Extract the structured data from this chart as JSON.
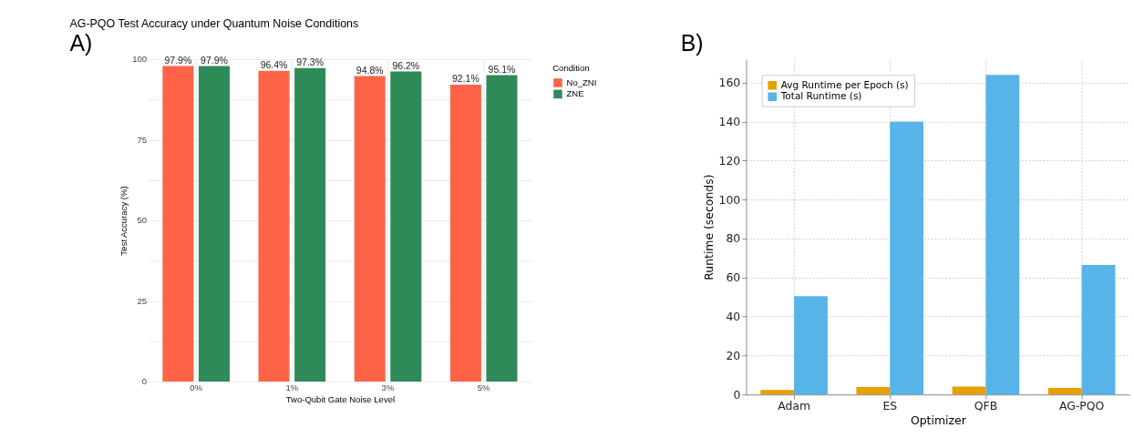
{
  "chart_data": [
    {
      "type": "bar",
      "title": "AG-PQO Test Accuracy under Quantum Noise Conditions",
      "xlabel": "Two-Qubit Gate Noise Level",
      "ylabel": "Test Accuracy (%)",
      "legend_title": "Condition",
      "categories": [
        "0%",
        "1%",
        "3%",
        "5%"
      ],
      "series": [
        {
          "name": "No_ZNI",
          "color": "#ff6347",
          "values": [
            97.9,
            96.4,
            94.8,
            92.1
          ],
          "value_labels": [
            "97.9%",
            "96.4%",
            "94.8%",
            "92.1%"
          ]
        },
        {
          "name": "ZNE",
          "color": "#2e8b57",
          "values": [
            97.9,
            97.3,
            96.2,
            95.1
          ],
          "value_labels": [
            "97.9%",
            "97.3%",
            "96.2%",
            "95.1%"
          ]
        }
      ],
      "ylim": [
        0,
        100
      ],
      "yticks": [
        0,
        {
          "value": 12.5,
          "label": null
        },
        25,
        {
          "value": 37.5,
          "label": null
        },
        50,
        {
          "value": 62.5,
          "label": null
        },
        75,
        {
          "value": 87.5,
          "label": null
        },
        100
      ],
      "grid": true,
      "legend": "right",
      "annotations": [
        "A)"
      ]
    },
    {
      "type": "bar",
      "xlabel": "Optimizer",
      "ylabel": "Runtime (seconds)",
      "categories": [
        "Adam",
        "ES",
        "QFB",
        "AG-PQO"
      ],
      "series": [
        {
          "name": "Avg Runtime per Epoch (s)",
          "color": "#e69f00",
          "values": [
            2.3,
            3.8,
            4.1,
            3.4
          ]
        },
        {
          "name": "Total Runtime (s)",
          "color": "#56b4e9",
          "values": [
            50.5,
            140,
            164,
            66.5
          ]
        }
      ],
      "ylim": [
        0,
        172
      ],
      "yticks": [
        0,
        20,
        40,
        60,
        80,
        100,
        120,
        140,
        160
      ],
      "grid": true,
      "legend": "top left",
      "annotations": [
        "B)"
      ]
    }
  ]
}
